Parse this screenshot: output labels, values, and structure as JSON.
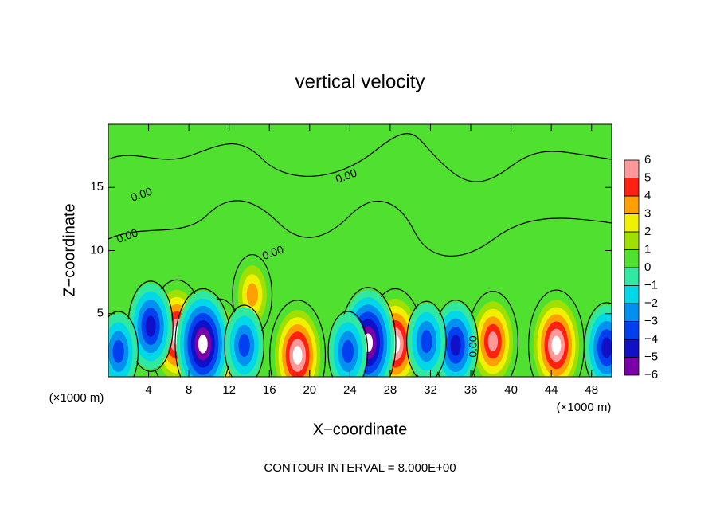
{
  "chart_data": {
    "type": "contour",
    "title": "vertical velocity",
    "xlabel": "X−coordinate",
    "ylabel": "Z−coordinate",
    "x_unit": "(×1000 m)",
    "y_unit": "(×1000 m)",
    "footer": "CONTOUR INTERVAL = 8.000E+00",
    "xlim": [
      0,
      50
    ],
    "ylim": [
      0,
      20
    ],
    "xticks": [
      4,
      8,
      12,
      16,
      20,
      24,
      28,
      32,
      36,
      40,
      44,
      48
    ],
    "yticks": [
      5,
      10,
      15
    ],
    "colorbar": {
      "ticks": [
        6,
        5,
        4,
        3,
        2,
        1,
        0,
        {
          "value": -1,
          "label": "−1"
        },
        {
          "value": -2,
          "label": "−2"
        },
        {
          "value": -3,
          "label": "−3"
        },
        {
          "value": -4,
          "label": "−4"
        },
        {
          "value": -5,
          "label": "−5"
        },
        {
          "value": -6,
          "label": "−6"
        }
      ],
      "colors": [
        "#7a00a8",
        "#1010c8",
        "#0040f0",
        "#0090f0",
        "#00d8e8",
        "#30e8a0",
        "#50e030",
        "#a0e000",
        "#f0f000",
        "#ffa000",
        "#ff2010",
        "#ff9898"
      ]
    },
    "contour_labels": [
      "0.00",
      "0.00",
      "0.00",
      "0.00",
      "0.00"
    ],
    "extrema": {
      "x": [
        6.8,
        11,
        18.8,
        28.5,
        38.2,
        44.5,
        14.3,
        4.2,
        9.4,
        13.5,
        25.8,
        23.8,
        34.5,
        31.6,
        49.5,
        1
      ],
      "z": [
        3.3,
        2.2,
        1.7,
        2.6,
        2.8,
        2.5,
        6.5,
        4,
        2.6,
        2.5,
        2.7,
        2,
        2.5,
        2.8,
        2.3,
        2
      ],
      "values": [
        6,
        5,
        6,
        6,
        5,
        6,
        3,
        -4,
        -6,
        -3,
        -6,
        -3,
        -4,
        -3,
        -4,
        -3
      ]
    }
  }
}
